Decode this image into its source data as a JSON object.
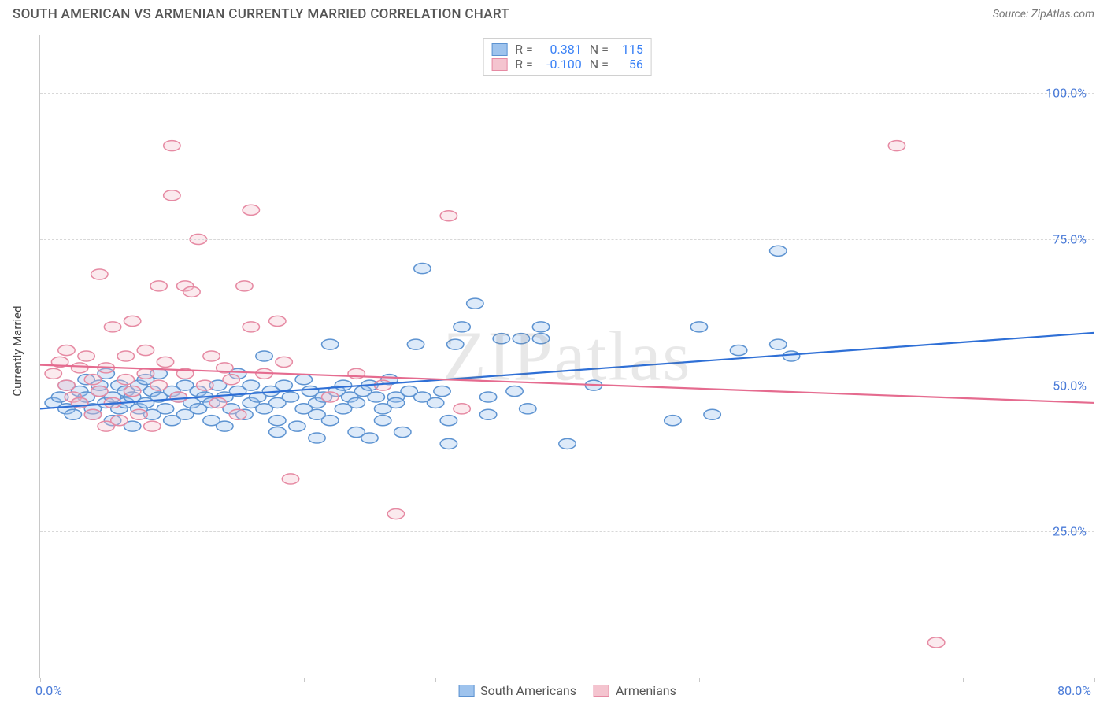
{
  "title": "SOUTH AMERICAN VS ARMENIAN CURRENTLY MARRIED CORRELATION CHART",
  "source": "Source: ZipAtlas.com",
  "watermark": "ZIPatlas",
  "chart": {
    "type": "scatter",
    "y_axis_title": "Currently Married",
    "xlim": [
      0,
      80
    ],
    "ylim": [
      0,
      110
    ],
    "ytick_labels": [
      "25.0%",
      "50.0%",
      "75.0%",
      "100.0%"
    ],
    "ytick_values": [
      25,
      50,
      75,
      100
    ],
    "xtick_values": [
      0,
      10,
      20,
      30,
      40,
      50,
      60,
      70,
      80
    ],
    "xlabel_min": "0.0%",
    "xlabel_max": "80.0%",
    "background_color": "#ffffff",
    "grid_color": "#d8d8d8",
    "marker_radius": 8,
    "marker_fill_opacity": 0.35,
    "marker_stroke_width": 1.5,
    "line_width": 2.2,
    "series": [
      {
        "name": "South Americans",
        "color_fill": "#9ec3ed",
        "color_stroke": "#5d93d1",
        "line_color": "#2e6fd6",
        "R": "0.381",
        "N": "115",
        "regression": {
          "x1": 0,
          "y1": 46,
          "x2": 80,
          "y2": 59
        },
        "points": [
          [
            1,
            47
          ],
          [
            1.5,
            48
          ],
          [
            2,
            46
          ],
          [
            2,
            50
          ],
          [
            2.5,
            45
          ],
          [
            3,
            47
          ],
          [
            3,
            49
          ],
          [
            3.5,
            48
          ],
          [
            3.5,
            51
          ],
          [
            4,
            45
          ],
          [
            4,
            46
          ],
          [
            4.5,
            49
          ],
          [
            4.5,
            50
          ],
          [
            5,
            47
          ],
          [
            5,
            52
          ],
          [
            5.5,
            44
          ],
          [
            5.5,
            48
          ],
          [
            6,
            46
          ],
          [
            6,
            50
          ],
          [
            6.5,
            47
          ],
          [
            6.5,
            49
          ],
          [
            7,
            43
          ],
          [
            7,
            48
          ],
          [
            7.5,
            46
          ],
          [
            7.5,
            50
          ],
          [
            8,
            47
          ],
          [
            8,
            51
          ],
          [
            8.5,
            45
          ],
          [
            8.5,
            49
          ],
          [
            9,
            48
          ],
          [
            9,
            52
          ],
          [
            9.5,
            46
          ],
          [
            10,
            49
          ],
          [
            10,
            44
          ],
          [
            10.5,
            48
          ],
          [
            11,
            50
          ],
          [
            11,
            45
          ],
          [
            11.5,
            47
          ],
          [
            12,
            46
          ],
          [
            12,
            49
          ],
          [
            12.5,
            48
          ],
          [
            13,
            44
          ],
          [
            13,
            47
          ],
          [
            13.5,
            50
          ],
          [
            14,
            43
          ],
          [
            14,
            48
          ],
          [
            14.5,
            46
          ],
          [
            15,
            49
          ],
          [
            15,
            52
          ],
          [
            15.5,
            45
          ],
          [
            16,
            47
          ],
          [
            16,
            50
          ],
          [
            16.5,
            48
          ],
          [
            17,
            46
          ],
          [
            17,
            55
          ],
          [
            17.5,
            49
          ],
          [
            18,
            44
          ],
          [
            18,
            47
          ],
          [
            18.5,
            50
          ],
          [
            19,
            48
          ],
          [
            19.5,
            43
          ],
          [
            20,
            46
          ],
          [
            20,
            51
          ],
          [
            20.5,
            49
          ],
          [
            21,
            45
          ],
          [
            21,
            47
          ],
          [
            21.5,
            48
          ],
          [
            22,
            57
          ],
          [
            22,
            44
          ],
          [
            22.5,
            49
          ],
          [
            23,
            46
          ],
          [
            23,
            50
          ],
          [
            23.5,
            48
          ],
          [
            24,
            42
          ],
          [
            24,
            47
          ],
          [
            24.5,
            49
          ],
          [
            25,
            41
          ],
          [
            25,
            50
          ],
          [
            25.5,
            48
          ],
          [
            26,
            46
          ],
          [
            26,
            44
          ],
          [
            26.5,
            51
          ],
          [
            27,
            48
          ],
          [
            27,
            47
          ],
          [
            27.5,
            42
          ],
          [
            28,
            49
          ],
          [
            28.5,
            57
          ],
          [
            29,
            48
          ],
          [
            29,
            70
          ],
          [
            30,
            47
          ],
          [
            30.5,
            49
          ],
          [
            31,
            44
          ],
          [
            31.5,
            57
          ],
          [
            32,
            60
          ],
          [
            33,
            64
          ],
          [
            34,
            48
          ],
          [
            34,
            45
          ],
          [
            35,
            58
          ],
          [
            36,
            49
          ],
          [
            36.5,
            58
          ],
          [
            37,
            46
          ],
          [
            38,
            60
          ],
          [
            38,
            58
          ],
          [
            40,
            40
          ],
          [
            42,
            50
          ],
          [
            48,
            44
          ],
          [
            50,
            60
          ],
          [
            51,
            45
          ],
          [
            53,
            56
          ],
          [
            56,
            73
          ],
          [
            56,
            57
          ],
          [
            57,
            55
          ],
          [
            31,
            40
          ],
          [
            21,
            41
          ],
          [
            18,
            42
          ]
        ]
      },
      {
        "name": "Armenians",
        "color_fill": "#f4c4cf",
        "color_stroke": "#e68aa3",
        "line_color": "#e56b8f",
        "R": "-0.100",
        "N": "56",
        "regression": {
          "x1": 0,
          "y1": 53.5,
          "x2": 80,
          "y2": 47
        },
        "points": [
          [
            1,
            52
          ],
          [
            1.5,
            54
          ],
          [
            2,
            50
          ],
          [
            2,
            56
          ],
          [
            2.5,
            48
          ],
          [
            3,
            53
          ],
          [
            3,
            47
          ],
          [
            3.5,
            55
          ],
          [
            4,
            51
          ],
          [
            4,
            45
          ],
          [
            4.5,
            49
          ],
          [
            4.5,
            69
          ],
          [
            5,
            43
          ],
          [
            5,
            53
          ],
          [
            5.5,
            47
          ],
          [
            5.5,
            60
          ],
          [
            6,
            44
          ],
          [
            6.5,
            51
          ],
          [
            6.5,
            55
          ],
          [
            7,
            49
          ],
          [
            7,
            61
          ],
          [
            7.5,
            45
          ],
          [
            8,
            52
          ],
          [
            8,
            56
          ],
          [
            8.5,
            43
          ],
          [
            9,
            50
          ],
          [
            9,
            67
          ],
          [
            9.5,
            54
          ],
          [
            10,
            91
          ],
          [
            10,
            82.5
          ],
          [
            10.5,
            48
          ],
          [
            11,
            52
          ],
          [
            11,
            67
          ],
          [
            11.5,
            66
          ],
          [
            12,
            75
          ],
          [
            12.5,
            50
          ],
          [
            13,
            55
          ],
          [
            13.5,
            47
          ],
          [
            14,
            53
          ],
          [
            14.5,
            51
          ],
          [
            15,
            45
          ],
          [
            15.5,
            67
          ],
          [
            16,
            80
          ],
          [
            16,
            60
          ],
          [
            17,
            52
          ],
          [
            18,
            61
          ],
          [
            18.5,
            54
          ],
          [
            19,
            34
          ],
          [
            22,
            48
          ],
          [
            24,
            52
          ],
          [
            26,
            50
          ],
          [
            27,
            28
          ],
          [
            31,
            79
          ],
          [
            32,
            46
          ],
          [
            65,
            91
          ],
          [
            68,
            6
          ]
        ]
      }
    ]
  },
  "legend_bottom": [
    {
      "label": "South Americans",
      "fill": "#9ec3ed",
      "stroke": "#5d93d1"
    },
    {
      "label": "Armenians",
      "fill": "#f4c4cf",
      "stroke": "#e68aa3"
    }
  ]
}
